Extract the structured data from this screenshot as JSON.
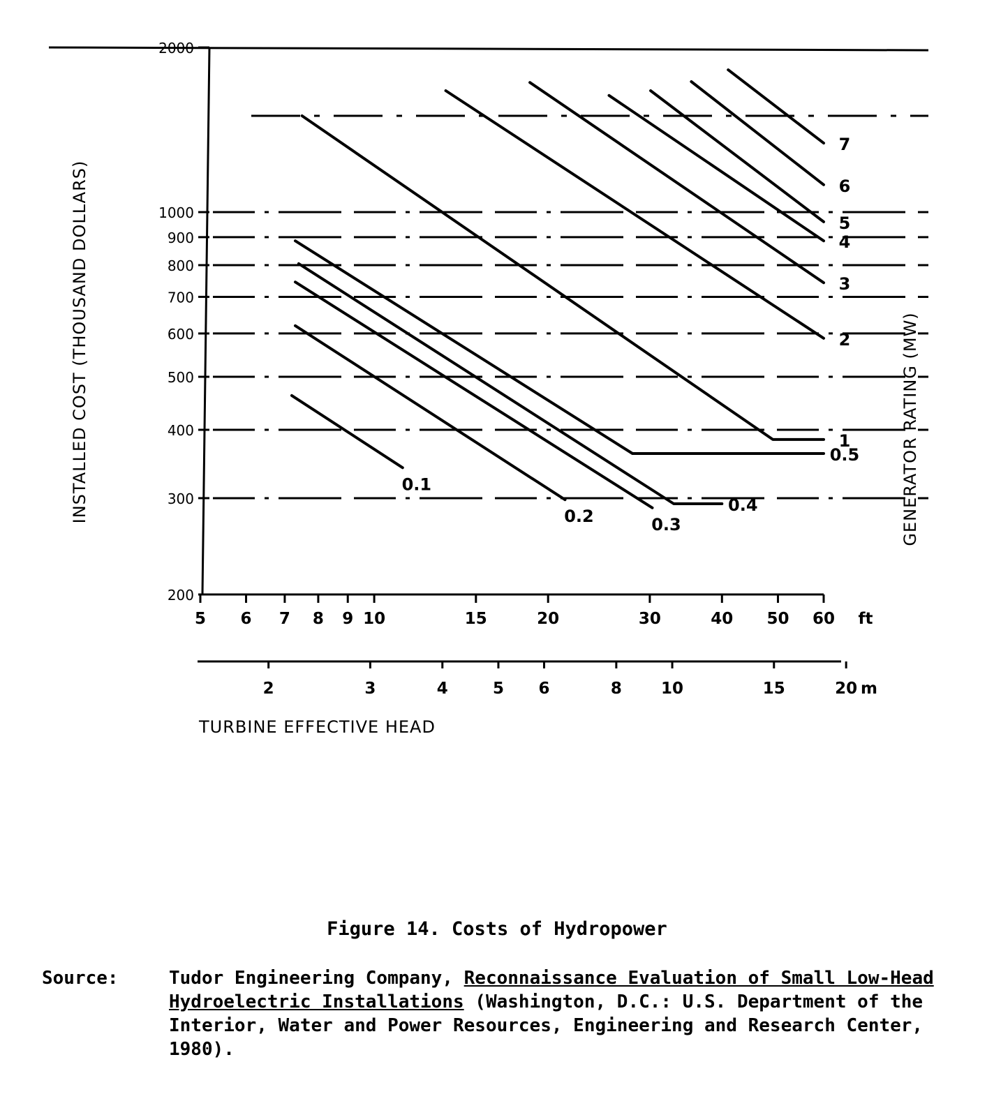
{
  "chart_data": {
    "type": "line",
    "xscale": "log",
    "yscale": "log",
    "xlabel": "TURBINE EFFECTIVE HEAD",
    "ylabel": "INSTALLED COST (THOUSAND DOLLARS)",
    "y2label": "GENERATOR RATING (MW)",
    "xlim": [
      5,
      60
    ],
    "ylim": [
      200,
      2000
    ],
    "x_unit": "ft",
    "x_ticks": [
      "5",
      "6",
      "7",
      "8",
      "9",
      "10",
      "15",
      "20",
      "30",
      "40",
      "50",
      "60"
    ],
    "x_tick_values": [
      5,
      6,
      7,
      8,
      9,
      10,
      15,
      20,
      30,
      40,
      50,
      60
    ],
    "x2_unit": "m",
    "x2_ticks": [
      "2",
      "3",
      "4",
      "5",
      "6",
      "8",
      "10",
      "15",
      "20"
    ],
    "x2_tick_values": [
      2,
      3,
      4,
      5,
      6,
      8,
      10,
      15,
      20
    ],
    "y_ticks": [
      "200",
      "300",
      "400",
      "500",
      "600",
      "700",
      "800",
      "900",
      "1000",
      "2000"
    ],
    "y_tick_values": [
      200,
      300,
      400,
      500,
      600,
      700,
      800,
      900,
      1000,
      2000
    ],
    "grid": "dashed horizontal",
    "series": [
      {
        "name": "0.1",
        "x": [
          7.2,
          11.2
        ],
        "y": [
          462,
          341
        ]
      },
      {
        "name": "0.2",
        "x": [
          7.3,
          21.4
        ],
        "y": [
          620,
          298
        ]
      },
      {
        "name": "0.3",
        "x": [
          7.3,
          30.3
        ],
        "y": [
          745,
          288
        ]
      },
      {
        "name": "0.4",
        "x": [
          7.4,
          33,
          40
        ],
        "y": [
          805,
          293,
          293
        ]
      },
      {
        "name": "0.5",
        "x": [
          7.3,
          28,
          60
        ],
        "y": [
          886,
          362,
          362
        ]
      },
      {
        "name": "1",
        "x": [
          7.5,
          49,
          60
        ],
        "y": [
          1500,
          384,
          384
        ]
      },
      {
        "name": "2",
        "x": [
          13.3,
          60
        ],
        "y": [
          1667,
          588
        ]
      },
      {
        "name": "3",
        "x": [
          18.6,
          60
        ],
        "y": [
          1726,
          743
        ]
      },
      {
        "name": "4",
        "x": [
          25.5,
          60
        ],
        "y": [
          1634,
          886
        ]
      },
      {
        "name": "5",
        "x": [
          30.1,
          60
        ],
        "y": [
          1667,
          960
        ]
      },
      {
        "name": "6",
        "x": [
          35.4,
          60
        ],
        "y": [
          1732,
          1122
        ]
      },
      {
        "name": "7",
        "x": [
          41,
          60
        ],
        "y": [
          1820,
          1337
        ]
      }
    ]
  },
  "caption": {
    "title": "Figure 14. Costs of Hydropower",
    "source_label": "Source:",
    "source_author": "Tudor Engineering Company,",
    "source_work": "Reconnaissance Evaluation of Small Low-Head Hydroelectric Installations",
    "source_rest": "(Washington, D.C.: U.S. Department of the Interior, Water and Power Resources, Engineering and Research Center, 1980)."
  }
}
